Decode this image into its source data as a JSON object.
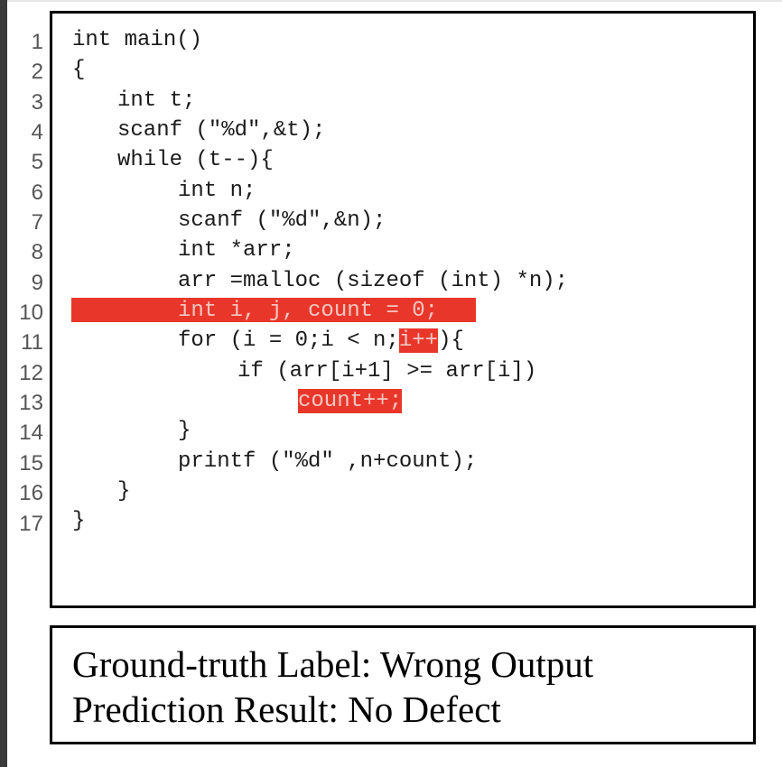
{
  "line_numbers": [
    "1",
    "2",
    "3",
    "4",
    "5",
    "6",
    "7",
    "8",
    "9",
    "10",
    "11",
    "12",
    "13",
    "14",
    "15",
    "16",
    "17"
  ],
  "code": {
    "l1": "int main()",
    "l2": "{",
    "l3": "int t;",
    "l4": "scanf (\"%d\",&t);",
    "l5": "while (t--){",
    "l6": "int n;",
    "l7": "scanf (\"%d\",&n);",
    "l8": "int *arr;",
    "l9": "arr =malloc (sizeof (int) *n);",
    "l10": "int i, j, count = 0;",
    "l11_pre": "for (i = 0;i < n;",
    "l11_hl": "i++",
    "l11_post": "){",
    "l12": "if (arr[i+1] >= arr[i])",
    "l13": "count++;",
    "l14": "}",
    "l15": "printf (\"%d\" ,n+count);",
    "l16": "}",
    "l17": "}"
  },
  "highlight_color": "#e8372a",
  "result": {
    "ground_truth": "Ground-truth Label: Wrong Output",
    "prediction": "Prediction Result: No Defect"
  }
}
